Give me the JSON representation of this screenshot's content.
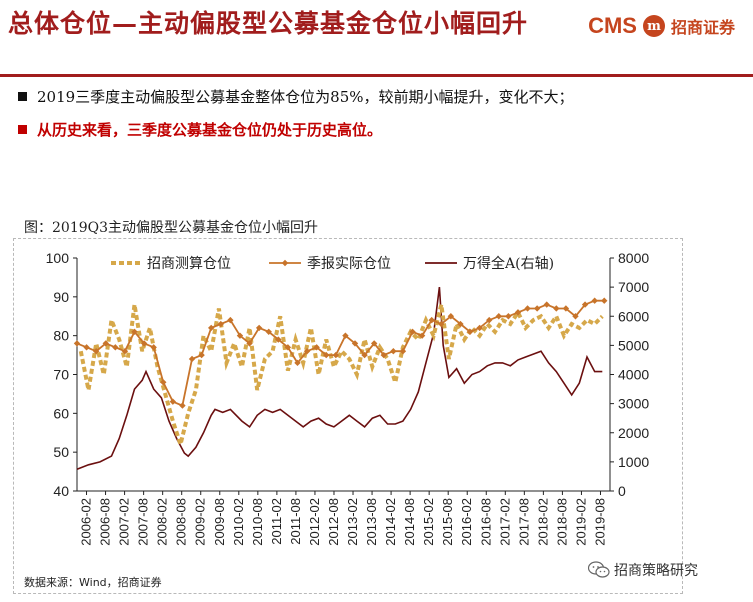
{
  "header": {
    "title": "总体仓位—主动偏股型公募基金仓位小幅回升",
    "logo_text": "CMS",
    "logo_mark": "m",
    "logo_cn": "招商证券"
  },
  "bullets": [
    "2019三季度主动偏股型公募基金整体仓位为85%，较前期小幅提升，变化不大；",
    "从历史来看，三季度公募基金仓位仍处于历史高位。"
  ],
  "figure": {
    "caption": "图：2019Q3主动偏股型公募基金仓位小幅回升",
    "source": "数据来源：Wind，招商证券"
  },
  "watermark": "招商策略研究",
  "colors": {
    "brand_red": "#a11d1d",
    "bullet_red": "#c00000",
    "series_estimate": "#d6a84a",
    "series_actual": "#c8742a",
    "series_index": "#6b0f0f"
  },
  "chart_data": {
    "type": "line",
    "legend_position": "top",
    "grid": false,
    "x_ticks": [
      "2006-02",
      "2006-08",
      "2007-02",
      "2007-08",
      "2008-02",
      "2008-08",
      "2009-02",
      "2009-08",
      "2010-02",
      "2010-08",
      "2011-02",
      "2011-08",
      "2012-02",
      "2012-08",
      "2013-02",
      "2013-08",
      "2014-02",
      "2014-08",
      "2015-02",
      "2015-08",
      "2016-02",
      "2016-08",
      "2017-02",
      "2017-08",
      "2018-02",
      "2018-08",
      "2019-02",
      "2019-08"
    ],
    "y_left": {
      "min": 40,
      "max": 100,
      "ticks": [
        "40",
        "50",
        "60",
        "70",
        "80",
        "90",
        "100"
      ]
    },
    "y_right": {
      "min": 0,
      "max": 8000,
      "ticks": [
        "0",
        "1000",
        "2000",
        "3000",
        "4000",
        "5000",
        "6000",
        "7000",
        "8000"
      ]
    },
    "series": [
      {
        "name": "招商测算仓位",
        "axis": "left",
        "style": "dashed-thick",
        "x": [
          2006.1,
          2006.3,
          2006.5,
          2006.7,
          2006.9,
          2007.1,
          2007.3,
          2007.5,
          2007.7,
          2007.9,
          2008.1,
          2008.3,
          2008.5,
          2008.7,
          2008.9,
          2009.1,
          2009.3,
          2009.5,
          2009.7,
          2009.9,
          2010.1,
          2010.3,
          2010.5,
          2010.7,
          2010.9,
          2011.1,
          2011.3,
          2011.5,
          2011.7,
          2011.9,
          2012.1,
          2012.3,
          2012.5,
          2012.7,
          2012.9,
          2013.1,
          2013.3,
          2013.5,
          2013.7,
          2013.9,
          2014.1,
          2014.3,
          2014.5,
          2014.7,
          2014.9,
          2015.1,
          2015.3,
          2015.5,
          2015.7,
          2015.9,
          2016.1,
          2016.3,
          2016.5,
          2016.7,
          2016.9,
          2017.1,
          2017.3,
          2017.5,
          2017.7,
          2017.9,
          2018.1,
          2018.3,
          2018.5,
          2018.7,
          2018.9,
          2019.1,
          2019.3,
          2019.5,
          2019.7
        ],
        "values": [
          76,
          66,
          78,
          70,
          84,
          79,
          72,
          88,
          76,
          82,
          72,
          65,
          58,
          52,
          60,
          66,
          80,
          76,
          87,
          73,
          78,
          72,
          82,
          66,
          74,
          76,
          85,
          71,
          79,
          73,
          82,
          70,
          79,
          72,
          76,
          74,
          70,
          79,
          72,
          77,
          74,
          68,
          77,
          81,
          79,
          84,
          80,
          88,
          74,
          83,
          79,
          82,
          80,
          83,
          81,
          84,
          83,
          86,
          82,
          84,
          85,
          82,
          85,
          80,
          83,
          82,
          84,
          83,
          85
        ]
      },
      {
        "name": "季报实际仓位",
        "axis": "left",
        "style": "line-diamond",
        "x": [
          2006.0,
          2006.25,
          2006.5,
          2006.75,
          2007.0,
          2007.25,
          2007.5,
          2007.75,
          2008.0,
          2008.25,
          2008.5,
          2008.75,
          2009.0,
          2009.25,
          2009.5,
          2009.75,
          2010.0,
          2010.25,
          2010.5,
          2010.75,
          2011.0,
          2011.25,
          2011.5,
          2011.75,
          2012.0,
          2012.25,
          2012.5,
          2012.75,
          2013.0,
          2013.25,
          2013.5,
          2013.75,
          2014.0,
          2014.25,
          2014.5,
          2014.75,
          2015.0,
          2015.25,
          2015.5,
          2015.75,
          2016.0,
          2016.25,
          2016.5,
          2016.75,
          2017.0,
          2017.25,
          2017.5,
          2017.75,
          2018.0,
          2018.25,
          2018.5,
          2018.75,
          2019.0,
          2019.25,
          2019.5,
          2019.75
        ],
        "values": [
          78,
          77,
          76,
          78,
          77,
          76,
          81,
          78,
          77,
          68,
          63,
          62,
          74,
          75,
          82,
          83,
          84,
          80,
          78,
          82,
          81,
          79,
          77,
          73,
          76,
          77,
          75,
          75,
          80,
          78,
          75,
          78,
          75,
          76,
          76,
          81,
          80,
          84,
          83,
          85,
          83,
          81,
          82,
          84,
          85,
          85,
          86,
          87,
          87,
          88,
          87,
          87,
          85,
          88,
          89,
          89
        ]
      },
      {
        "name": "万得全A(右轴)",
        "axis": "right",
        "style": "line",
        "x": [
          2006.0,
          2006.3,
          2006.6,
          2006.9,
          2007.1,
          2007.3,
          2007.5,
          2007.7,
          2007.8,
          2008.0,
          2008.2,
          2008.4,
          2008.6,
          2008.8,
          2008.9,
          2009.1,
          2009.3,
          2009.5,
          2009.6,
          2009.8,
          2010.0,
          2010.3,
          2010.5,
          2010.7,
          2010.9,
          2011.1,
          2011.3,
          2011.5,
          2011.7,
          2011.9,
          2012.1,
          2012.3,
          2012.5,
          2012.7,
          2012.9,
          2013.1,
          2013.3,
          2013.5,
          2013.7,
          2013.9,
          2014.1,
          2014.3,
          2014.5,
          2014.7,
          2014.9,
          2015.1,
          2015.3,
          2015.45,
          2015.55,
          2015.7,
          2015.9,
          2016.1,
          2016.3,
          2016.5,
          2016.7,
          2016.9,
          2017.1,
          2017.3,
          2017.5,
          2017.7,
          2017.9,
          2018.1,
          2018.3,
          2018.5,
          2018.7,
          2018.9,
          2019.1,
          2019.3,
          2019.5,
          2019.7
        ],
        "values": [
          750,
          900,
          1000,
          1200,
          1800,
          2600,
          3500,
          3800,
          4100,
          3500,
          3200,
          2400,
          1800,
          1300,
          1200,
          1500,
          2000,
          2600,
          2800,
          2700,
          2800,
          2400,
          2200,
          2600,
          2800,
          2700,
          2800,
          2600,
          2400,
          2200,
          2400,
          2500,
          2300,
          2200,
          2400,
          2600,
          2400,
          2200,
          2500,
          2600,
          2300,
          2300,
          2400,
          2800,
          3400,
          4400,
          5400,
          7000,
          5000,
          3900,
          4200,
          3700,
          4000,
          4100,
          4300,
          4400,
          4400,
          4300,
          4500,
          4600,
          4700,
          4800,
          4400,
          4100,
          3700,
          3300,
          3700,
          4600,
          4100,
          4100
        ]
      }
    ]
  }
}
